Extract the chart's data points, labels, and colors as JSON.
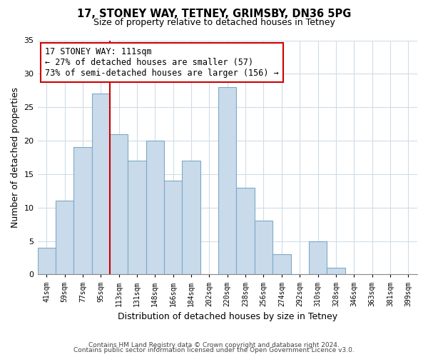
{
  "title": "17, STONEY WAY, TETNEY, GRIMSBY, DN36 5PG",
  "subtitle": "Size of property relative to detached houses in Tetney",
  "xlabel": "Distribution of detached houses by size in Tetney",
  "ylabel": "Number of detached properties",
  "bin_labels": [
    "41sqm",
    "59sqm",
    "77sqm",
    "95sqm",
    "113sqm",
    "131sqm",
    "148sqm",
    "166sqm",
    "184sqm",
    "202sqm",
    "220sqm",
    "238sqm",
    "256sqm",
    "274sqm",
    "292sqm",
    "310sqm",
    "328sqm",
    "346sqm",
    "363sqm",
    "381sqm",
    "399sqm"
  ],
  "bar_values": [
    4,
    11,
    19,
    27,
    21,
    17,
    20,
    14,
    17,
    0,
    28,
    13,
    8,
    3,
    0,
    5,
    1,
    0,
    0,
    0,
    0
  ],
  "bar_color": "#c9daea",
  "bar_edge_color": "#7baac8",
  "reference_line_x_label": "113sqm",
  "reference_line_color": "#cc0000",
  "annotation_text": "17 STONEY WAY: 111sqm\n← 27% of detached houses are smaller (57)\n73% of semi-detached houses are larger (156) →",
  "annotation_box_color": "#ffffff",
  "annotation_box_edge": "#cc0000",
  "ylim": [
    0,
    35
  ],
  "yticks": [
    0,
    5,
    10,
    15,
    20,
    25,
    30,
    35
  ],
  "footer_line1": "Contains HM Land Registry data © Crown copyright and database right 2024.",
  "footer_line2": "Contains public sector information licensed under the Open Government Licence v3.0.",
  "bg_color": "#ffffff",
  "grid_color": "#d0dce8"
}
